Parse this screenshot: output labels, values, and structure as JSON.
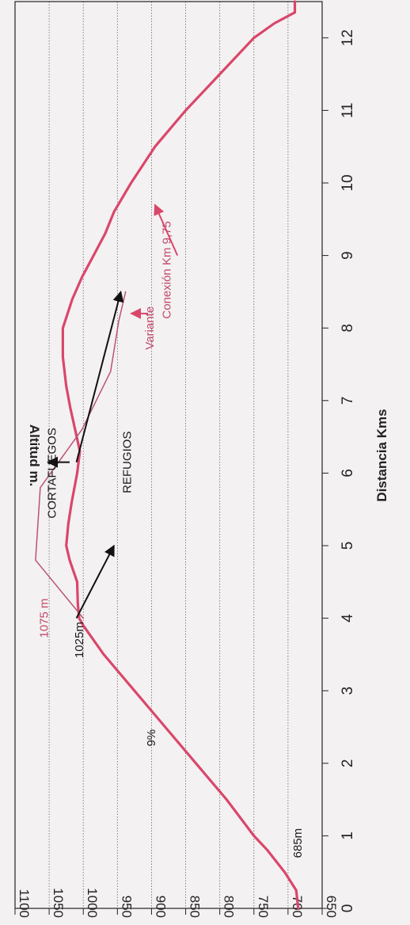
{
  "chart_data": {
    "type": "line",
    "title": "",
    "xlabel": "Distancia  Kms",
    "ylabel": "Altitud  m.",
    "xlim": [
      0,
      12.5
    ],
    "ylim": [
      650,
      1100
    ],
    "x_ticks": [
      "0",
      "1",
      "2",
      "3",
      "4",
      "5",
      "6",
      "7",
      "8",
      "9",
      "10",
      "11",
      "12"
    ],
    "y_ticks": [
      "1100",
      "1050",
      "1000",
      "950",
      "900",
      "850",
      "800",
      "750",
      "700",
      "650"
    ],
    "grid": true,
    "series": [
      {
        "color": "#d9476a",
        "values": [
          [
            0,
            685
          ],
          [
            0.25,
            688
          ],
          [
            0.5,
            705
          ],
          [
            0.8,
            730
          ],
          [
            1.0,
            750
          ],
          [
            1.5,
            790
          ],
          [
            2.0,
            835
          ],
          [
            2.5,
            880
          ],
          [
            3.0,
            925
          ],
          [
            3.5,
            970
          ],
          [
            3.9,
            1000
          ],
          [
            4.0,
            1006
          ],
          [
            4.2,
            1008
          ],
          [
            4.5,
            1009
          ],
          [
            4.8,
            1020
          ],
          [
            5.0,
            1025
          ],
          [
            5.3,
            1022
          ],
          [
            5.6,
            1017
          ],
          [
            6.0,
            1009
          ],
          [
            6.3,
            1005
          ],
          [
            6.6,
            1012
          ],
          [
            6.9,
            1019
          ],
          [
            7.2,
            1025
          ],
          [
            7.6,
            1030
          ],
          [
            8.0,
            1030
          ],
          [
            8.4,
            1016
          ],
          [
            8.7,
            1002
          ],
          [
            9.0,
            985
          ],
          [
            9.3,
            968
          ],
          [
            9.6,
            955
          ],
          [
            10.0,
            930
          ],
          [
            10.5,
            895
          ],
          [
            11.0,
            850
          ],
          [
            11.5,
            800
          ],
          [
            12.0,
            750
          ],
          [
            12.2,
            720
          ],
          [
            12.35,
            690
          ],
          [
            12.5,
            690
          ]
        ]
      },
      {
        "color": "#b8546f",
        "values": [
          [
            4.0,
            1000
          ],
          [
            4.8,
            1070
          ],
          [
            5.8,
            1063
          ],
          [
            6.6,
            1002
          ],
          [
            7.4,
            960
          ],
          [
            8.1,
            948
          ],
          [
            8.5,
            938
          ]
        ]
      }
    ],
    "annotations": [
      {
        "text": "685m",
        "x": 0.9,
        "y": 680,
        "color": "#1a1a1a",
        "rotate": -90
      },
      {
        "text": "9%",
        "x": 2.35,
        "y": 895,
        "color": "#1a1a1a",
        "rotate": -90
      },
      {
        "text": "1025m",
        "x": 3.7,
        "y": 1000,
        "color": "#1a1a1a",
        "rotate": -90
      },
      {
        "text": "1075 m",
        "x": 4.0,
        "y": 1052,
        "color": "#c04a6a",
        "rotate": -90
      },
      {
        "text": "CORTAFUEGOS",
        "x": 6.0,
        "y": 1040,
        "color": "#1a1a1a",
        "rotate": -90
      },
      {
        "text": "REFUGIOS",
        "x": 6.15,
        "y": 930,
        "color": "#1a1a1a",
        "rotate": -90
      },
      {
        "text": "Variante",
        "x": 8.0,
        "y": 897,
        "color": "#c04a6a",
        "rotate": -90
      },
      {
        "text": "Conexión Km  9,75",
        "x": 8.8,
        "y": 872,
        "color": "#c04a6a",
        "rotate": -90
      }
    ],
    "arrows": [
      {
        "color": "#111111",
        "from": [
          6.15,
          1010
        ],
        "to": [
          8.5,
          945
        ]
      },
      {
        "color": "#111111",
        "from": [
          4.0,
          1010
        ],
        "to": [
          5.0,
          955
        ]
      },
      {
        "color": "#111111",
        "from": [
          6.15,
          1020
        ],
        "to": [
          6.15,
          1052
        ]
      },
      {
        "color": "#d9476a",
        "from": [
          8.2,
          905
        ],
        "to": [
          8.2,
          930
        ]
      },
      {
        "color": "#d9476a",
        "from": [
          9.0,
          862
        ],
        "to": [
          9.7,
          895
        ]
      }
    ]
  }
}
